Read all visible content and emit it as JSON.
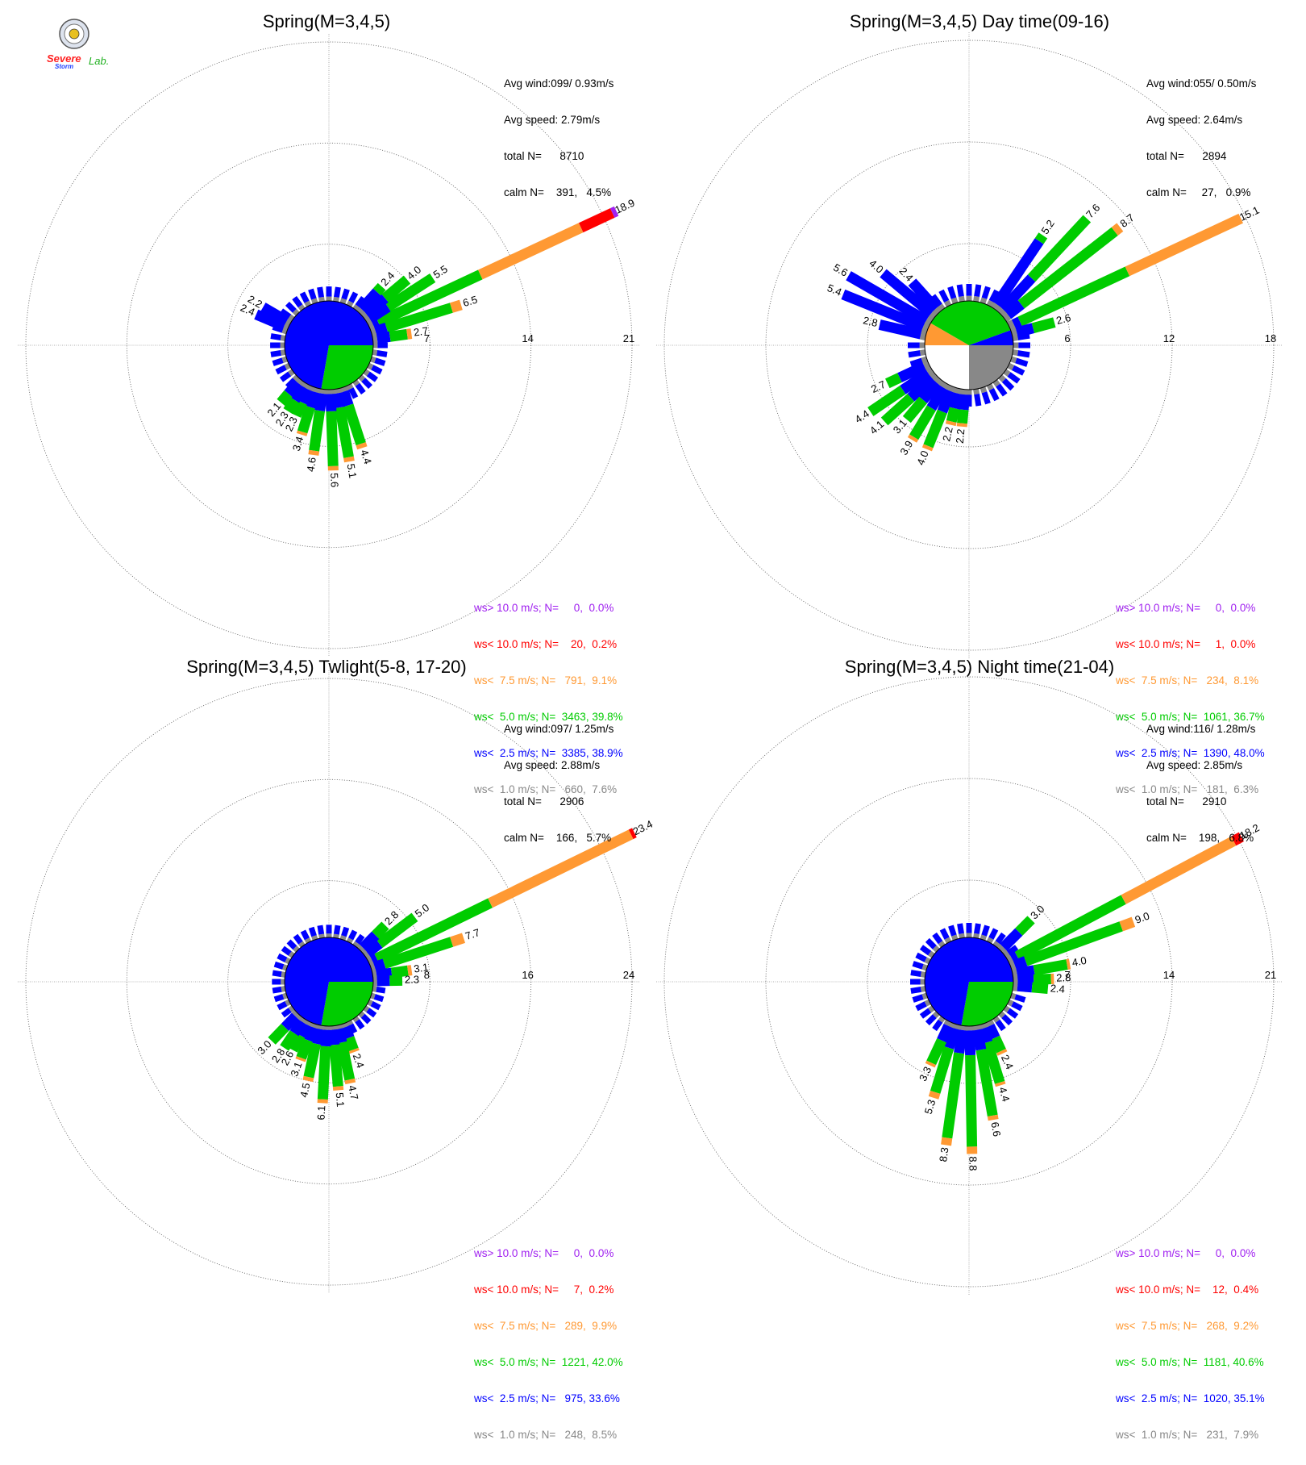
{
  "logo": {
    "text_line1": "Severe",
    "text_line2": "Storm",
    "text_lab": "Lab."
  },
  "chart_data": [
    {
      "type": "windrose",
      "title": "Spring(M=3,4,5)",
      "stats": {
        "avg_wind": "Avg wind:099/ 0.93m/s",
        "avg_speed": "Avg speed: 2.79m/s",
        "total_n": "total N=      8710",
        "calm_n": "calm N=    391,   4.5%"
      },
      "rmax": 21,
      "rings": [
        7,
        14,
        21
      ],
      "ring_labels": [
        "7",
        "14",
        "21"
      ],
      "legend": [
        {
          "label": "ws> 10.0 m/s; N=     0,  0.0%",
          "color": "#a020f0"
        },
        {
          "label": "ws< 10.0 m/s; N=    20,  0.2%",
          "color": "#ff0000"
        },
        {
          "label": "ws<  7.5 m/s; N=   791,  9.1%",
          "color": "#ff9933"
        },
        {
          "label": "ws<  5.0 m/s; N=  3463, 39.8%",
          "color": "#00cc00"
        },
        {
          "label": "ws<  2.5 m/s; N=  3385, 38.9%",
          "color": "#0000ff"
        },
        {
          "label": "ws<  1.0 m/s; N=   660,  7.6%",
          "color": "#888888"
        }
      ],
      "pie": [
        {
          "from": 0,
          "to": 90,
          "color": "#888888"
        },
        {
          "from": 90,
          "to": 180,
          "color": "#ffffff"
        },
        {
          "from": 180,
          "to": 220,
          "color": "#ff9933"
        },
        {
          "from": 220,
          "to": 460,
          "color": "#00cc00"
        },
        {
          "from": 460,
          "to": 0,
          "color": "#0000ff"
        }
      ],
      "bars": [
        {
          "dir": 65,
          "total": 18.9,
          "label": "18.9",
          "segs": [
            0.3,
            0.4,
            7.8,
            7.7,
            2.4,
            0.3
          ]
        },
        {
          "dir": 57,
          "total": 5.5,
          "label": "5.5",
          "segs": [
            0.3,
            1.5,
            3.7
          ]
        },
        {
          "dir": 50,
          "total": 4.0,
          "label": "4.0",
          "segs": [
            0.3,
            1.7,
            2.0
          ]
        },
        {
          "dir": 42,
          "total": 2.4,
          "label": "2.4",
          "segs": [
            0.3,
            1.6,
            0.5
          ]
        },
        {
          "dir": 73,
          "total": 6.5,
          "label": "6.5",
          "segs": [
            0.3,
            0.8,
            4.7,
            0.7
          ]
        },
        {
          "dir": 82,
          "total": 2.7,
          "label": "2.7",
          "segs": [
            0.3,
            0.9,
            1.2,
            0.3
          ]
        },
        {
          "dir": 162,
          "total": 4.4,
          "label": "4.4",
          "segs": [
            0.3,
            1.0,
            2.8,
            0.3
          ]
        },
        {
          "dir": 170,
          "total": 5.1,
          "label": "5.1",
          "segs": [
            0.3,
            1.0,
            3.5,
            0.3
          ]
        },
        {
          "dir": 178,
          "total": 5.6,
          "label": "5.6",
          "segs": [
            0.3,
            1.2,
            3.8,
            0.3
          ]
        },
        {
          "dir": 188,
          "total": 4.6,
          "label": "4.6",
          "segs": [
            0.3,
            1.2,
            2.8,
            0.3
          ]
        },
        {
          "dir": 197,
          "total": 3.4,
          "label": "3.4",
          "segs": [
            0.3,
            1.1,
            1.8,
            0.2
          ]
        },
        {
          "dir": 205,
          "total": 2.3,
          "label": "2.3",
          "segs": [
            0.3,
            1.0,
            1.0
          ]
        },
        {
          "dir": 212,
          "total": 2.3,
          "label": "2.3",
          "segs": [
            0.3,
            1.1,
            0.9
          ]
        },
        {
          "dir": 220,
          "total": 2.1,
          "label": "2.1",
          "segs": [
            0.3,
            1.0,
            0.8
          ]
        },
        {
          "dir": 293,
          "total": 2.4,
          "label": "2.4",
          "segs": [
            0.3,
            2.1
          ]
        },
        {
          "dir": 300,
          "total": 2.2,
          "label": "2.2",
          "segs": [
            0.3,
            1.9
          ]
        }
      ]
    },
    {
      "type": "windrose",
      "title": "Spring(M=3,4,5) Day time(09-16)",
      "stats": {
        "avg_wind": "Avg wind:055/ 0.50m/s",
        "avg_speed": "Avg speed: 2.64m/s",
        "total_n": "total N=      2894",
        "calm_n": "calm N=     27,   0.9%"
      },
      "rmax": 18,
      "rings": [
        6,
        12,
        18
      ],
      "ring_labels": [
        "6",
        "12",
        "18"
      ],
      "legend": [
        {
          "label": "ws> 10.0 m/s; N=     0,  0.0%",
          "color": "#a020f0"
        },
        {
          "label": "ws< 10.0 m/s; N=     1,  0.0%",
          "color": "#ff0000"
        },
        {
          "label": "ws<  7.5 m/s; N=   234,  8.1%",
          "color": "#ff9933"
        },
        {
          "label": "ws<  5.0 m/s; N=  1061, 36.7%",
          "color": "#00cc00"
        },
        {
          "label": "ws<  2.5 m/s; N=  1390, 48.0%",
          "color": "#0000ff"
        },
        {
          "label": "ws<  1.0 m/s; N=   181,  6.3%",
          "color": "#888888"
        }
      ],
      "pie": [
        {
          "from": 0,
          "to": 90,
          "color": "#888888"
        },
        {
          "from": 90,
          "to": 180,
          "color": "#ffffff"
        },
        {
          "from": 180,
          "to": 210,
          "color": "#ff9933"
        },
        {
          "from": 210,
          "to": 340,
          "color": "#00cc00"
        },
        {
          "from": 340,
          "to": 0,
          "color": "#0000ff"
        }
      ],
      "bars": [
        {
          "dir": 65,
          "total": 15.1,
          "label": "15.1",
          "segs": [
            0.3,
            0.4,
            7.0,
            7.4
          ]
        },
        {
          "dir": 52,
          "total": 8.7,
          "label": "8.7",
          "segs": [
            0.3,
            1.0,
            7.0,
            0.4
          ]
        },
        {
          "dir": 43,
          "total": 7.6,
          "label": "7.6",
          "segs": [
            0.3,
            2.5,
            4.8
          ]
        },
        {
          "dir": 34,
          "total": 5.2,
          "label": "5.2",
          "segs": [
            0.3,
            4.5,
            0.4
          ]
        },
        {
          "dir": 75,
          "total": 2.6,
          "label": "2.6",
          "segs": [
            0.3,
            1.0,
            1.3
          ]
        },
        {
          "dir": 300,
          "total": 5.6,
          "label": "5.6",
          "segs": [
            0.3,
            5.3
          ]
        },
        {
          "dir": 292,
          "total": 5.4,
          "label": "5.4",
          "segs": [
            0.3,
            5.1
          ]
        },
        {
          "dir": 310,
          "total": 4.0,
          "label": "4.0",
          "segs": [
            0.3,
            3.7
          ]
        },
        {
          "dir": 318,
          "total": 2.4,
          "label": "2.4",
          "segs": [
            0.3,
            2.1
          ]
        },
        {
          "dir": 283,
          "total": 2.8,
          "label": "2.8",
          "segs": [
            0.3,
            2.5
          ]
        },
        {
          "dir": 245,
          "total": 2.7,
          "label": "2.7",
          "segs": [
            0.3,
            1.6,
            0.8
          ]
        },
        {
          "dir": 236,
          "total": 4.4,
          "label": "4.4",
          "segs": [
            0.3,
            1.8,
            2.3
          ]
        },
        {
          "dir": 228,
          "total": 4.1,
          "label": "4.1",
          "segs": [
            0.3,
            1.7,
            2.1
          ]
        },
        {
          "dir": 220,
          "total": 3.1,
          "label": "3.1",
          "segs": [
            0.3,
            1.3,
            1.5
          ]
        },
        {
          "dir": 211,
          "total": 3.9,
          "label": "3.9",
          "segs": [
            0.3,
            1.4,
            2.0,
            0.2
          ]
        },
        {
          "dir": 202,
          "total": 4.0,
          "label": "4.0",
          "segs": [
            0.3,
            1.3,
            2.2,
            0.2
          ]
        },
        {
          "dir": 193,
          "total": 2.2,
          "label": "2.2",
          "segs": [
            0.3,
            0.9,
            0.8,
            0.2
          ]
        },
        {
          "dir": 185,
          "total": 2.2,
          "label": "2.2",
          "segs": [
            0.3,
            0.9,
            0.8,
            0.2
          ]
        }
      ]
    },
    {
      "type": "windrose",
      "title": "Spring(M=3,4,5) Twlight(5-8, 17-20)",
      "stats": {
        "avg_wind": "Avg wind:097/ 1.25m/s",
        "avg_speed": "Avg speed: 2.88m/s",
        "total_n": "total N=      2906",
        "calm_n": "calm N=    166,   5.7%"
      },
      "rmax": 24,
      "rings": [
        8,
        16,
        24
      ],
      "ring_labels": [
        "8",
        "16",
        "24"
      ],
      "legend": [
        {
          "label": "ws> 10.0 m/s; N=     0,  0.0%",
          "color": "#a020f0"
        },
        {
          "label": "ws< 10.0 m/s; N=     7,  0.2%",
          "color": "#ff0000"
        },
        {
          "label": "ws<  7.5 m/s; N=   289,  9.9%",
          "color": "#ff9933"
        },
        {
          "label": "ws<  5.0 m/s; N=  1221, 42.0%",
          "color": "#00cc00"
        },
        {
          "label": "ws<  2.5 m/s; N=   975, 33.6%",
          "color": "#0000ff"
        },
        {
          "label": "ws<  1.0 m/s; N=   248,  8.5%",
          "color": "#888888"
        }
      ],
      "pie": [
        {
          "from": 0,
          "to": 90,
          "color": "#888888"
        },
        {
          "from": 90,
          "to": 180,
          "color": "#ffffff"
        },
        {
          "from": 180,
          "to": 220,
          "color": "#ff9933"
        },
        {
          "from": 220,
          "to": 460,
          "color": "#00cc00"
        },
        {
          "from": 460,
          "to": 0,
          "color": "#0000ff"
        }
      ],
      "bars": [
        {
          "dir": 64,
          "total": 23.4,
          "label": "23.4",
          "segs": [
            0.3,
            0.4,
            10.0,
            12.4,
            0.3
          ]
        },
        {
          "dir": 72,
          "total": 7.7,
          "label": "7.7",
          "segs": [
            0.3,
            0.8,
            5.6,
            1.0
          ]
        },
        {
          "dir": 53,
          "total": 5.0,
          "label": "5.0",
          "segs": [
            0.3,
            1.2,
            3.5
          ]
        },
        {
          "dir": 45,
          "total": 2.8,
          "label": "2.8",
          "segs": [
            0.3,
            1.4,
            1.1
          ]
        },
        {
          "dir": 82,
          "total": 3.1,
          "label": "3.1",
          "segs": [
            0.3,
            1.2,
            1.3,
            0.3
          ]
        },
        {
          "dir": 89,
          "total": 2.3,
          "label": "2.3",
          "segs": [
            0.3,
            1.0,
            1.0
          ]
        },
        {
          "dir": 160,
          "total": 2.4,
          "label": "2.4",
          "segs": [
            0.3,
            0.9,
            1.0,
            0.2
          ]
        },
        {
          "dir": 168,
          "total": 4.7,
          "label": "4.7",
          "segs": [
            0.3,
            1.1,
            3.0,
            0.3
          ]
        },
        {
          "dir": 175,
          "total": 5.1,
          "label": "5.1",
          "segs": [
            0.3,
            1.2,
            3.3,
            0.3
          ]
        },
        {
          "dir": 183,
          "total": 6.1,
          "label": "6.1",
          "segs": [
            0.3,
            1.3,
            4.2,
            0.3
          ]
        },
        {
          "dir": 192,
          "total": 4.5,
          "label": "4.5",
          "segs": [
            0.3,
            1.2,
            2.7,
            0.3
          ]
        },
        {
          "dir": 200,
          "total": 3.1,
          "label": "3.1",
          "segs": [
            0.3,
            1.1,
            1.5,
            0.2
          ]
        },
        {
          "dir": 208,
          "total": 2.6,
          "label": "2.6",
          "segs": [
            0.3,
            1.0,
            1.3
          ]
        },
        {
          "dir": 214,
          "total": 2.8,
          "label": "2.8",
          "segs": [
            0.3,
            1.1,
            1.4
          ]
        },
        {
          "dir": 224,
          "total": 3.0,
          "label": "3.0",
          "segs": [
            0.3,
            1.2,
            1.5
          ]
        }
      ]
    },
    {
      "type": "windrose",
      "title": "Spring(M=3,4,5) Night time(21-04)",
      "stats": {
        "avg_wind": "Avg wind:116/ 1.28m/s",
        "avg_speed": "Avg speed: 2.85m/s",
        "total_n": "total N=      2910",
        "calm_n": "calm N=    198,   6.8%"
      },
      "rmax": 21,
      "rings": [
        7,
        14,
        21
      ],
      "ring_labels": [
        "7",
        "14",
        "21"
      ],
      "legend": [
        {
          "label": "ws> 10.0 m/s; N=     0,  0.0%",
          "color": "#a020f0"
        },
        {
          "label": "ws< 10.0 m/s; N=    12,  0.4%",
          "color": "#ff0000"
        },
        {
          "label": "ws<  7.5 m/s; N=   268,  9.2%",
          "color": "#ff9933"
        },
        {
          "label": "ws<  5.0 m/s; N=  1181, 40.6%",
          "color": "#00cc00"
        },
        {
          "label": "ws<  2.5 m/s; N=  1020, 35.1%",
          "color": "#0000ff"
        },
        {
          "label": "ws<  1.0 m/s; N=   231,  7.9%",
          "color": "#888888"
        }
      ],
      "pie": [
        {
          "from": 0,
          "to": 90,
          "color": "#888888"
        },
        {
          "from": 90,
          "to": 180,
          "color": "#ffffff"
        },
        {
          "from": 180,
          "to": 220,
          "color": "#ff9933"
        },
        {
          "from": 220,
          "to": 460,
          "color": "#00cc00"
        },
        {
          "from": 460,
          "to": 0,
          "color": "#0000ff"
        }
      ],
      "bars": [
        {
          "dir": 62,
          "total": 18.2,
          "label": "18.2",
          "segs": [
            0.3,
            0.4,
            8.3,
            8.6,
            0.6
          ]
        },
        {
          "dir": 70,
          "total": 9.0,
          "label": "9.0",
          "segs": [
            0.3,
            0.8,
            7.0,
            0.9
          ]
        },
        {
          "dir": 45,
          "total": 3.0,
          "label": "3.0",
          "segs": [
            0.3,
            1.5,
            1.2
          ]
        },
        {
          "dir": 80,
          "total": 4.0,
          "label": "4.0",
          "segs": [
            0.3,
            1.2,
            2.3,
            0.2
          ]
        },
        {
          "dir": 88,
          "total": 2.8,
          "label": "2.8",
          "segs": [
            0.3,
            1.1,
            1.2,
            0.2
          ]
        },
        {
          "dir": 95,
          "total": 2.4,
          "label": "2.4",
          "segs": [
            0.3,
            1.0,
            1.1
          ]
        },
        {
          "dir": 155,
          "total": 2.4,
          "label": "2.4",
          "segs": [
            0.3,
            0.9,
            1.0,
            0.2
          ]
        },
        {
          "dir": 163,
          "total": 4.4,
          "label": "4.4",
          "segs": [
            0.3,
            1.0,
            2.9,
            0.2
          ]
        },
        {
          "dir": 170,
          "total": 6.6,
          "label": "6.6",
          "segs": [
            0.3,
            1.4,
            4.6,
            0.3
          ]
        },
        {
          "dir": 179,
          "total": 8.8,
          "label": "8.8",
          "segs": [
            0.3,
            1.7,
            6.3,
            0.5
          ]
        },
        {
          "dir": 188,
          "total": 8.3,
          "label": "8.3",
          "segs": [
            0.3,
            1.6,
            5.9,
            0.5
          ]
        },
        {
          "dir": 197,
          "total": 5.3,
          "label": "5.3",
          "segs": [
            0.3,
            1.4,
            3.2,
            0.4
          ]
        },
        {
          "dir": 205,
          "total": 3.3,
          "label": "3.3",
          "segs": [
            0.3,
            1.1,
            1.7,
            0.2
          ]
        }
      ]
    }
  ]
}
